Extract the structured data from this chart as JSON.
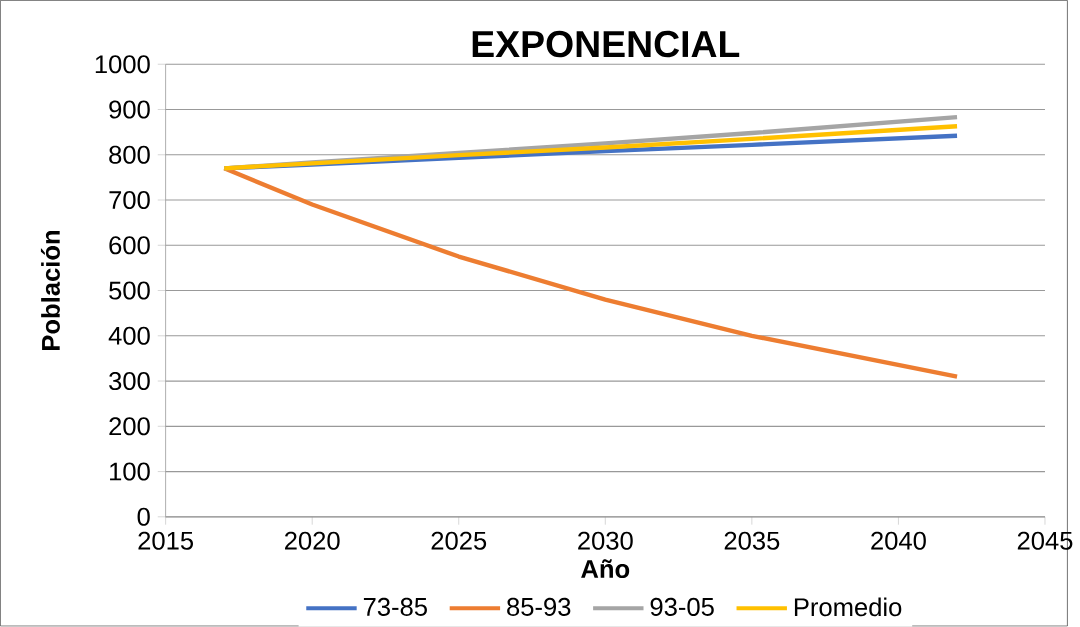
{
  "chart_data": {
    "type": "line",
    "title": "EXPONENCIAL",
    "xlabel": "Año",
    "ylabel": "Población",
    "xlim": [
      2015,
      2045
    ],
    "xticks": [
      2015,
      2020,
      2025,
      2030,
      2035,
      2040,
      2045
    ],
    "ylim": [
      0,
      1000
    ],
    "yticks": [
      0,
      100,
      200,
      300,
      400,
      500,
      600,
      700,
      800,
      900,
      1000
    ],
    "grid": "y",
    "legend": "bottom",
    "marker": "none",
    "line_style": "solid",
    "series": [
      {
        "name": "73-85",
        "color": "#4472c4",
        "x": [
          2017,
          2020,
          2025,
          2030,
          2035,
          2042
        ],
        "values": [
          770,
          778,
          793,
          808,
          822,
          842
        ]
      },
      {
        "name": "85-93",
        "color": "#ed7d31",
        "x": [
          2017,
          2020,
          2025,
          2030,
          2035,
          2042
        ],
        "values": [
          770,
          690,
          575,
          480,
          400,
          310
        ]
      },
      {
        "name": "93-05",
        "color": "#a5a5a5",
        "x": [
          2017,
          2020,
          2025,
          2030,
          2035,
          2042
        ],
        "values": [
          770,
          783,
          804,
          825,
          848,
          883
        ]
      },
      {
        "name": "Promedio",
        "color": "#ffc000",
        "x": [
          2017,
          2020,
          2025,
          2030,
          2035,
          2042
        ],
        "values": [
          770,
          781,
          799,
          816,
          835,
          863
        ]
      }
    ]
  }
}
